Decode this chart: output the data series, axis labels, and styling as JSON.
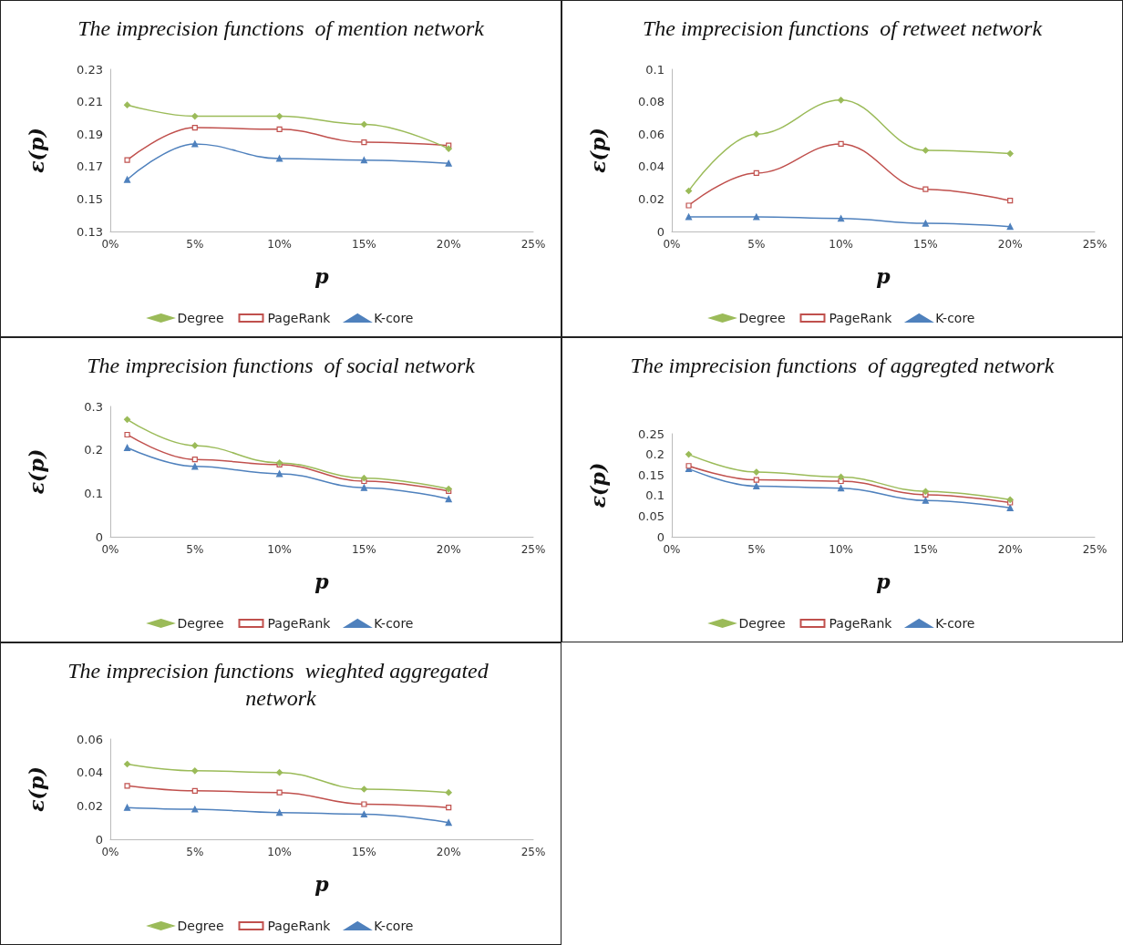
{
  "chart_data": [
    {
      "type": "line",
      "title": "The imprecision functions  of mention network",
      "xlabel": "p",
      "ylabel": "ε(p)",
      "x": [
        1,
        5,
        10,
        15,
        20
      ],
      "xlim": [
        0,
        25
      ],
      "xticks": [
        {
          "value": 0,
          "label": "0%"
        },
        {
          "value": 5,
          "label": "5%"
        },
        {
          "value": 10,
          "label": "10%"
        },
        {
          "value": 15,
          "label": "15%"
        },
        {
          "value": 20,
          "label": "20%"
        },
        {
          "value": 25,
          "label": "25%"
        }
      ],
      "ylim": [
        0.13,
        0.23
      ],
      "yticks": [
        0.13,
        0.15,
        0.17,
        0.19,
        0.21,
        0.23
      ],
      "legend": "bottom",
      "series": [
        {
          "name": "Degree",
          "color": "#9bbb59",
          "marker": "diamond",
          "values": [
            0.208,
            0.201,
            0.201,
            0.196,
            0.181
          ]
        },
        {
          "name": "PageRank",
          "color": "#c0504d",
          "marker": "square",
          "values": [
            0.174,
            0.194,
            0.193,
            0.185,
            0.183
          ]
        },
        {
          "name": "K-core",
          "color": "#4f81bd",
          "marker": "triangle",
          "values": [
            0.162,
            0.184,
            0.175,
            0.174,
            0.172
          ]
        }
      ]
    },
    {
      "type": "line",
      "title": "The imprecision functions  of retweet network",
      "xlabel": "p",
      "ylabel": "ε(p)",
      "x": [
        1,
        5,
        10,
        15,
        20
      ],
      "xlim": [
        0,
        25
      ],
      "xticks": [
        {
          "value": 0,
          "label": "0%"
        },
        {
          "value": 5,
          "label": "5%"
        },
        {
          "value": 10,
          "label": "10%"
        },
        {
          "value": 15,
          "label": "15%"
        },
        {
          "value": 20,
          "label": "20%"
        },
        {
          "value": 25,
          "label": "25%"
        }
      ],
      "ylim": [
        0,
        0.1
      ],
      "yticks": [
        0,
        0.02,
        0.04,
        0.06,
        0.08,
        0.1
      ],
      "legend": "bottom",
      "series": [
        {
          "name": "Degree",
          "color": "#9bbb59",
          "marker": "diamond",
          "values": [
            0.025,
            0.06,
            0.081,
            0.05,
            0.048
          ]
        },
        {
          "name": "PageRank",
          "color": "#c0504d",
          "marker": "square",
          "values": [
            0.016,
            0.036,
            0.054,
            0.026,
            0.019
          ]
        },
        {
          "name": "K-core",
          "color": "#4f81bd",
          "marker": "triangle",
          "values": [
            0.009,
            0.009,
            0.008,
            0.005,
            0.003
          ]
        }
      ]
    },
    {
      "type": "line",
      "title": "The imprecision functions  of social network",
      "xlabel": "p",
      "ylabel": "ε(p)",
      "x": [
        1,
        5,
        10,
        15,
        20
      ],
      "xlim": [
        0,
        25
      ],
      "xticks": [
        {
          "value": 0,
          "label": "0%"
        },
        {
          "value": 5,
          "label": "5%"
        },
        {
          "value": 10,
          "label": "10%"
        },
        {
          "value": 15,
          "label": "15%"
        },
        {
          "value": 20,
          "label": "20%"
        },
        {
          "value": 25,
          "label": "25%"
        }
      ],
      "ylim": [
        0,
        0.3
      ],
      "yticks": [
        0,
        0.1,
        0.2,
        0.3
      ],
      "legend": "bottom",
      "series": [
        {
          "name": "Degree",
          "color": "#9bbb59",
          "marker": "diamond",
          "values": [
            0.27,
            0.21,
            0.17,
            0.135,
            0.11
          ]
        },
        {
          "name": "PageRank",
          "color": "#c0504d",
          "marker": "square",
          "values": [
            0.235,
            0.178,
            0.166,
            0.128,
            0.105
          ]
        },
        {
          "name": "K-core",
          "color": "#4f81bd",
          "marker": "triangle",
          "values": [
            0.205,
            0.162,
            0.145,
            0.113,
            0.087
          ]
        }
      ]
    },
    {
      "type": "line",
      "title": "The imprecision functions  of aggregted network",
      "xlabel": "p",
      "ylabel": "ε(p)",
      "x": [
        1,
        5,
        10,
        15,
        20
      ],
      "xlim": [
        0,
        25
      ],
      "xticks": [
        {
          "value": 0,
          "label": "0%"
        },
        {
          "value": 5,
          "label": "5%"
        },
        {
          "value": 10,
          "label": "10%"
        },
        {
          "value": 15,
          "label": "15%"
        },
        {
          "value": 20,
          "label": "20%"
        },
        {
          "value": 25,
          "label": "25%"
        }
      ],
      "ylim": [
        0,
        0.25
      ],
      "yticks": [
        0,
        0.05,
        0.1,
        0.15,
        0.2,
        0.25
      ],
      "legend": "bottom",
      "series": [
        {
          "name": "Degree",
          "color": "#9bbb59",
          "marker": "diamond",
          "values": [
            0.2,
            0.157,
            0.145,
            0.11,
            0.09
          ]
        },
        {
          "name": "PageRank",
          "color": "#c0504d",
          "marker": "square",
          "values": [
            0.172,
            0.138,
            0.135,
            0.102,
            0.083
          ]
        },
        {
          "name": "K-core",
          "color": "#4f81bd",
          "marker": "triangle",
          "values": [
            0.165,
            0.123,
            0.118,
            0.088,
            0.07
          ]
        }
      ]
    },
    {
      "type": "line",
      "title": "The imprecision functions  wieghted aggregated network",
      "xlabel": "p",
      "ylabel": "ε(p)",
      "x": [
        1,
        5,
        10,
        15,
        20
      ],
      "xlim": [
        0,
        25
      ],
      "xticks": [
        {
          "value": 0,
          "label": "0%"
        },
        {
          "value": 5,
          "label": "5%"
        },
        {
          "value": 10,
          "label": "10%"
        },
        {
          "value": 15,
          "label": "15%"
        },
        {
          "value": 20,
          "label": "20%"
        },
        {
          "value": 25,
          "label": "25%"
        }
      ],
      "ylim": [
        0,
        0.06
      ],
      "yticks": [
        0,
        0.02,
        0.04,
        0.06
      ],
      "legend": "bottom",
      "series": [
        {
          "name": "Degree",
          "color": "#9bbb59",
          "marker": "diamond",
          "values": [
            0.045,
            0.041,
            0.04,
            0.03,
            0.028
          ]
        },
        {
          "name": "PageRank",
          "color": "#c0504d",
          "marker": "square",
          "values": [
            0.032,
            0.029,
            0.028,
            0.021,
            0.019
          ]
        },
        {
          "name": "K-core",
          "color": "#4f81bd",
          "marker": "triangle",
          "values": [
            0.019,
            0.018,
            0.016,
            0.015,
            0.01
          ]
        }
      ]
    }
  ]
}
